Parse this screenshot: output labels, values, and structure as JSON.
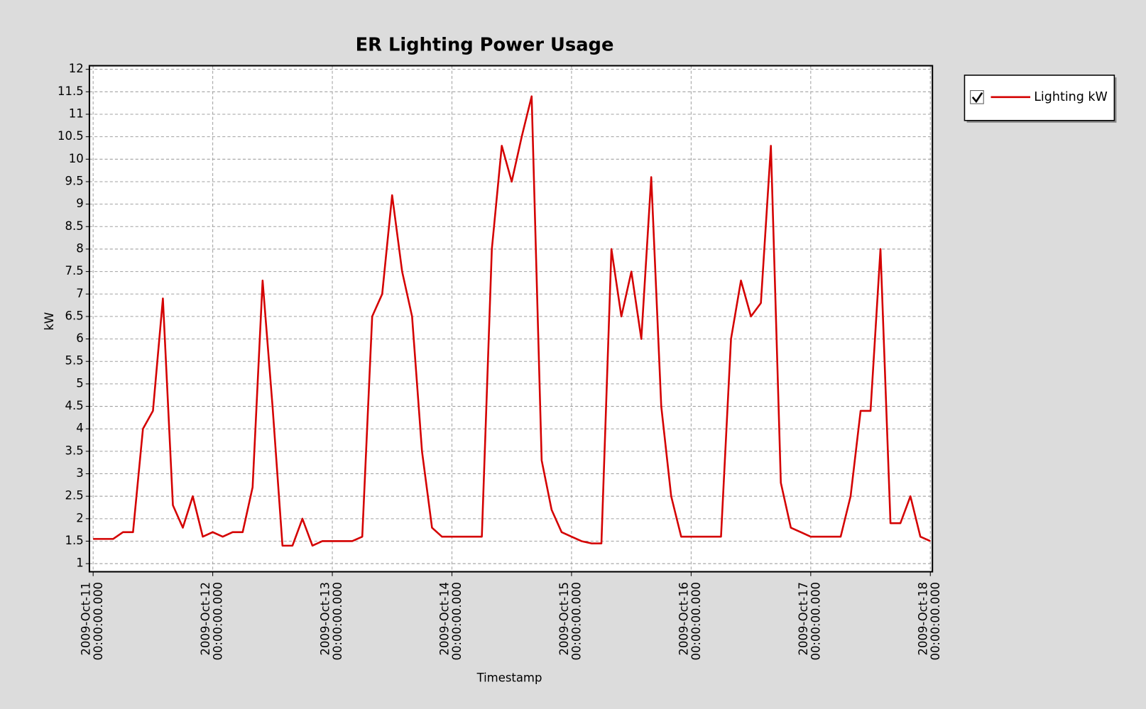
{
  "chart_data": {
    "type": "line",
    "title": "ER Lighting Power Usage",
    "x_label": "Timestamp",
    "y_label": "kW",
    "x": [
      "2009-Oct-11 00:00:00.000",
      "2009-Oct-11 02:00:00.000",
      "2009-Oct-11 04:00:00.000",
      "2009-Oct-11 06:00:00.000",
      "2009-Oct-11 08:00:00.000",
      "2009-Oct-11 10:00:00.000",
      "2009-Oct-11 12:00:00.000",
      "2009-Oct-11 14:00:00.000",
      "2009-Oct-11 16:00:00.000",
      "2009-Oct-11 18:00:00.000",
      "2009-Oct-11 20:00:00.000",
      "2009-Oct-11 22:00:00.000",
      "2009-Oct-12 00:00:00.000",
      "2009-Oct-12 02:00:00.000",
      "2009-Oct-12 04:00:00.000",
      "2009-Oct-12 06:00:00.000",
      "2009-Oct-12 08:00:00.000",
      "2009-Oct-12 10:00:00.000",
      "2009-Oct-12 12:00:00.000",
      "2009-Oct-12 14:00:00.000",
      "2009-Oct-12 16:00:00.000",
      "2009-Oct-12 18:00:00.000",
      "2009-Oct-12 20:00:00.000",
      "2009-Oct-12 22:00:00.000",
      "2009-Oct-13 00:00:00.000",
      "2009-Oct-13 02:00:00.000",
      "2009-Oct-13 04:00:00.000",
      "2009-Oct-13 06:00:00.000",
      "2009-Oct-13 08:00:00.000",
      "2009-Oct-13 10:00:00.000",
      "2009-Oct-13 12:00:00.000",
      "2009-Oct-13 14:00:00.000",
      "2009-Oct-13 16:00:00.000",
      "2009-Oct-13 18:00:00.000",
      "2009-Oct-13 20:00:00.000",
      "2009-Oct-13 22:00:00.000",
      "2009-Oct-14 00:00:00.000",
      "2009-Oct-14 02:00:00.000",
      "2009-Oct-14 04:00:00.000",
      "2009-Oct-14 06:00:00.000",
      "2009-Oct-14 08:00:00.000",
      "2009-Oct-14 10:00:00.000",
      "2009-Oct-14 12:00:00.000",
      "2009-Oct-14 14:00:00.000",
      "2009-Oct-14 16:00:00.000",
      "2009-Oct-14 18:00:00.000",
      "2009-Oct-14 20:00:00.000",
      "2009-Oct-14 22:00:00.000",
      "2009-Oct-15 00:00:00.000",
      "2009-Oct-15 02:00:00.000",
      "2009-Oct-15 04:00:00.000",
      "2009-Oct-15 06:00:00.000",
      "2009-Oct-15 08:00:00.000",
      "2009-Oct-15 10:00:00.000",
      "2009-Oct-15 12:00:00.000",
      "2009-Oct-15 14:00:00.000",
      "2009-Oct-15 16:00:00.000",
      "2009-Oct-15 18:00:00.000",
      "2009-Oct-15 20:00:00.000",
      "2009-Oct-15 22:00:00.000",
      "2009-Oct-16 00:00:00.000",
      "2009-Oct-16 02:00:00.000",
      "2009-Oct-16 04:00:00.000",
      "2009-Oct-16 06:00:00.000",
      "2009-Oct-16 08:00:00.000",
      "2009-Oct-16 10:00:00.000",
      "2009-Oct-16 12:00:00.000",
      "2009-Oct-16 14:00:00.000",
      "2009-Oct-16 16:00:00.000",
      "2009-Oct-16 18:00:00.000",
      "2009-Oct-16 20:00:00.000",
      "2009-Oct-16 22:00:00.000",
      "2009-Oct-17 00:00:00.000",
      "2009-Oct-17 02:00:00.000",
      "2009-Oct-17 04:00:00.000",
      "2009-Oct-17 06:00:00.000",
      "2009-Oct-17 08:00:00.000",
      "2009-Oct-17 10:00:00.000",
      "2009-Oct-17 12:00:00.000",
      "2009-Oct-17 14:00:00.000",
      "2009-Oct-17 16:00:00.000",
      "2009-Oct-17 18:00:00.000",
      "2009-Oct-17 20:00:00.000",
      "2009-Oct-17 22:00:00.000",
      "2009-Oct-18 00:00:00.000"
    ],
    "series": [
      {
        "name": "Lighting kW",
        "color": "#d40000",
        "values": [
          1.55,
          1.55,
          1.55,
          1.7,
          1.7,
          4.0,
          4.4,
          6.9,
          2.3,
          1.8,
          2.5,
          1.6,
          1.7,
          1.6,
          1.7,
          1.7,
          2.7,
          7.3,
          4.5,
          1.4,
          1.4,
          2.0,
          1.4,
          1.5,
          1.5,
          1.5,
          1.5,
          1.6,
          6.5,
          7.0,
          9.2,
          7.5,
          6.5,
          3.5,
          1.8,
          1.6,
          1.6,
          1.6,
          1.6,
          1.6,
          8.0,
          10.3,
          9.5,
          10.5,
          11.4,
          3.3,
          2.2,
          1.7,
          1.6,
          1.5,
          1.45,
          1.45,
          8.0,
          6.5,
          7.5,
          6.0,
          9.6,
          4.5,
          2.5,
          1.6,
          1.6,
          1.6,
          1.6,
          1.6,
          6.0,
          7.3,
          6.5,
          6.8,
          10.3,
          2.8,
          1.8,
          1.7,
          1.6,
          1.6,
          1.6,
          1.6,
          2.5,
          4.4,
          4.4,
          8.0,
          1.9,
          1.9,
          2.5,
          1.6,
          1.5
        ]
      }
    ],
    "xlim": [
      "2009-Oct-10 23:15:00.000",
      "2009-Oct-18 00:25:00.000"
    ],
    "xticks": [
      {
        "value": "2009-Oct-11 00:00:00.000",
        "label": [
          "2009-Oct-11",
          "00:00:00.000"
        ]
      },
      {
        "value": "2009-Oct-12 00:00:00.000",
        "label": [
          "2009-Oct-12",
          "00:00:00.000"
        ]
      },
      {
        "value": "2009-Oct-13 00:00:00.000",
        "label": [
          "2009-Oct-13",
          "00:00:00.000"
        ]
      },
      {
        "value": "2009-Oct-14 00:00:00.000",
        "label": [
          "2009-Oct-14",
          "00:00:00.000"
        ]
      },
      {
        "value": "2009-Oct-15 00:00:00.000",
        "label": [
          "2009-Oct-15",
          "00:00:00.000"
        ]
      },
      {
        "value": "2009-Oct-16 00:00:00.000",
        "label": [
          "2009-Oct-16",
          "00:00:00.000"
        ]
      },
      {
        "value": "2009-Oct-17 00:00:00.000",
        "label": [
          "2009-Oct-17",
          "00:00:00.000"
        ]
      },
      {
        "value": "2009-Oct-18 00:00:00.000",
        "label": [
          "2009-Oct-18",
          "00:00:00.000"
        ]
      }
    ],
    "ylim": [
      0.82,
      12.08
    ],
    "yticks": [
      1,
      1.5,
      2,
      2.5,
      3,
      3.5,
      4,
      4.5,
      5,
      5.5,
      6,
      6.5,
      7,
      7.5,
      8,
      8.5,
      9,
      9.5,
      10,
      10.5,
      11,
      11.5,
      12
    ],
    "grid": true,
    "legend": "top-right"
  }
}
